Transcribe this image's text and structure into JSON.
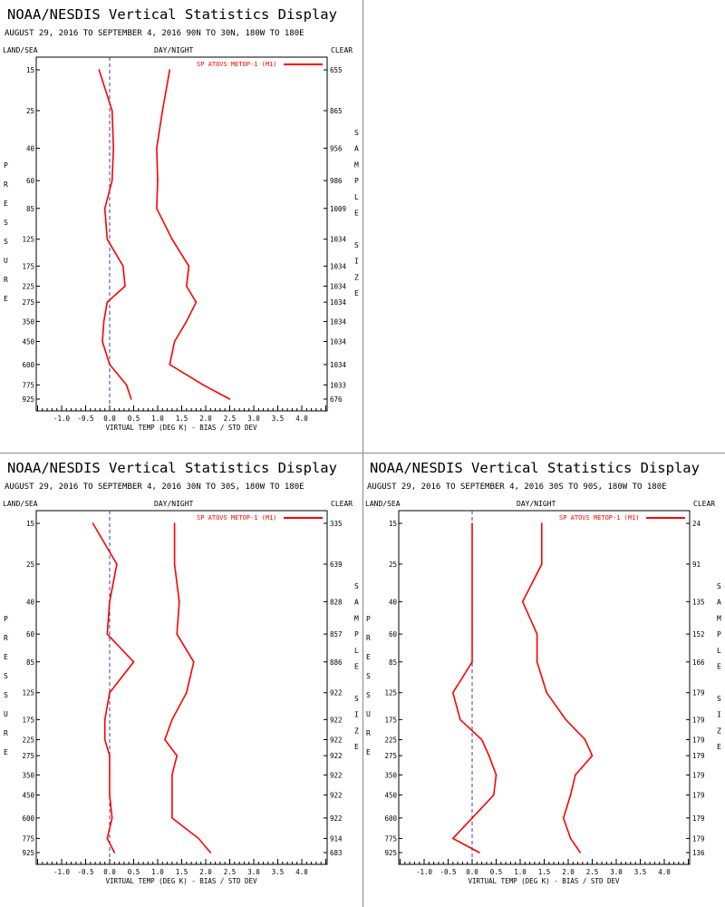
{
  "layout": {
    "panels": [
      {
        "position": "top-left",
        "chart_index": 0
      },
      {
        "position": "bottom-left",
        "chart_index": 1
      },
      {
        "position": "bottom-right",
        "chart_index": 2
      }
    ]
  },
  "colors": {
    "series": "#ff0000",
    "zero_line": "#3b3bbf",
    "axis": "#000000"
  },
  "common_labels": {
    "left_axis_header": "LAND/SEA",
    "center_header": "DAY/NIGHT",
    "right_axis_header": "CLEAR",
    "left_vertical_label": "PRESSURE",
    "right_vertical_label": "SAMPLE SIZE",
    "xlabel": "VIRTUAL TEMP (DEG K) - BIAS / STD DEV"
  },
  "chart_data": [
    {
      "type": "line",
      "title": "NOAA/NESDIS Vertical Statistics Display",
      "subtitle": "AUGUST 29, 2016 TO SEPTEMBER 4, 2016  90N TO 30N, 180W TO 180E",
      "legend": "SP ATOVS METOP-1 (M1)",
      "xlim": [
        -1.5,
        4.5
      ],
      "x_ticks": [
        "-1.0",
        "-0.5",
        "0.0",
        "0.5",
        "1.0",
        "1.5",
        "2.0",
        "2.5",
        "3.0",
        "3.5",
        "4.0"
      ],
      "pressure_levels": [
        "15",
        "25",
        "40",
        "60",
        "85",
        "125",
        "175",
        "225",
        "275",
        "350",
        "450",
        "600",
        "775",
        "925"
      ],
      "sample_size": [
        "655",
        "865",
        "956",
        "986",
        "1009",
        "1034",
        "1034",
        "1034",
        "1034",
        "1034",
        "1034",
        "1034",
        "1033",
        "676"
      ],
      "series": [
        {
          "name": "bias",
          "values": [
            -0.22,
            0.05,
            0.08,
            0.05,
            -0.1,
            -0.05,
            0.28,
            0.32,
            -0.05,
            -0.12,
            -0.15,
            0.0,
            0.35,
            0.45
          ]
        },
        {
          "name": "std_dev",
          "values": [
            1.25,
            1.1,
            0.98,
            1.0,
            0.98,
            1.3,
            1.65,
            1.6,
            1.8,
            1.6,
            1.35,
            1.25,
            1.95,
            2.5
          ]
        }
      ]
    },
    {
      "type": "line",
      "title": "NOAA/NESDIS Vertical Statistics Display",
      "subtitle": "AUGUST 29, 2016 TO SEPTEMBER 4, 2016  30N TO 30S, 180W TO 180E",
      "legend": "SP ATOVS METOP-1 (M1)",
      "xlim": [
        -1.5,
        4.5
      ],
      "x_ticks": [
        "-1.0",
        "-0.5",
        "0.0",
        "0.5",
        "1.0",
        "1.5",
        "2.0",
        "2.5",
        "3.0",
        "3.5",
        "4.0"
      ],
      "pressure_levels": [
        "15",
        "25",
        "40",
        "60",
        "85",
        "125",
        "175",
        "225",
        "275",
        "350",
        "450",
        "600",
        "775",
        "925"
      ],
      "sample_size": [
        "335",
        "639",
        "828",
        "857",
        "886",
        "922",
        "922",
        "922",
        "922",
        "922",
        "922",
        "922",
        "914",
        "683"
      ],
      "series": [
        {
          "name": "bias",
          "values": [
            -0.35,
            0.15,
            0.0,
            -0.05,
            0.5,
            0.0,
            -0.1,
            -0.1,
            0.0,
            0.0,
            0.0,
            0.05,
            -0.05,
            0.1
          ]
        },
        {
          "name": "std_dev",
          "values": [
            1.35,
            1.35,
            1.45,
            1.4,
            1.75,
            1.6,
            1.3,
            1.15,
            1.4,
            1.3,
            1.3,
            1.3,
            1.85,
            2.1
          ]
        }
      ]
    },
    {
      "type": "line",
      "title": "NOAA/NESDIS Vertical Statistics Display",
      "subtitle": "AUGUST 29, 2016 TO SEPTEMBER 4, 2016  30S TO 90S, 180W TO 180E",
      "legend": "SP ATOVS METOP-1 (M1)",
      "xlim": [
        -1.5,
        4.5
      ],
      "x_ticks": [
        "-1.0",
        "-0.5",
        "0.0",
        "0.5",
        "1.0",
        "1.5",
        "2.0",
        "2.5",
        "3.0",
        "3.5",
        "4.0"
      ],
      "pressure_levels": [
        "15",
        "25",
        "40",
        "60",
        "85",
        "125",
        "175",
        "225",
        "275",
        "350",
        "450",
        "600",
        "775",
        "925"
      ],
      "sample_size": [
        "24",
        "91",
        "135",
        "152",
        "166",
        "179",
        "179",
        "179",
        "179",
        "179",
        "179",
        "179",
        "179",
        "136"
      ],
      "series": [
        {
          "name": "bias",
          "values": [
            0.0,
            0.0,
            0.0,
            0.0,
            0.0,
            -0.4,
            -0.25,
            0.2,
            0.35,
            0.5,
            0.45,
            0.0,
            -0.4,
            0.15
          ]
        },
        {
          "name": "std_dev",
          "values": [
            1.45,
            1.45,
            1.05,
            1.35,
            1.35,
            1.55,
            1.95,
            2.35,
            2.5,
            2.15,
            2.05,
            1.9,
            2.05,
            2.25
          ]
        }
      ]
    }
  ]
}
